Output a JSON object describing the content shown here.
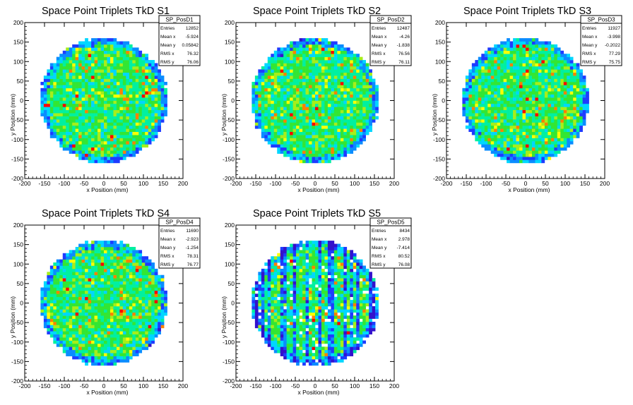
{
  "chart_data": [
    {
      "type": "heatmap",
      "title": "Space Point Triplets TkD S1",
      "xlabel": "x Position (mm)",
      "ylabel": "y Position (mm)",
      "xlim": [
        -200,
        200
      ],
      "ylim": [
        -200,
        200
      ],
      "xticks": [
        -200,
        -150,
        -100,
        -50,
        0,
        50,
        100,
        150,
        200
      ],
      "yticks": [
        -200,
        -150,
        -100,
        -50,
        0,
        50,
        100,
        150,
        200
      ],
      "stats": {
        "name": "SP_PosD1",
        "rows": [
          [
            "Entries",
            "12852"
          ],
          [
            "Mean x",
            "-5.924"
          ],
          [
            "Mean y",
            "0.05842"
          ],
          [
            "RMS x",
            "76.32"
          ],
          [
            "RMS y",
            "76.06"
          ]
        ]
      },
      "bin_width_mm": 8,
      "disk_radius_mm": 160,
      "seed": 11
    },
    {
      "type": "heatmap",
      "title": "Space Point Triplets TkD S2",
      "xlabel": "x Position (mm)",
      "ylabel": "y Position (mm)",
      "xlim": [
        -200,
        200
      ],
      "ylim": [
        -200,
        200
      ],
      "xticks": [
        -200,
        -150,
        -100,
        -50,
        0,
        50,
        100,
        150,
        200
      ],
      "yticks": [
        -200,
        -150,
        -100,
        -50,
        0,
        50,
        100,
        150,
        200
      ],
      "stats": {
        "name": "SP_PosD2",
        "rows": [
          [
            "Entries",
            "12487"
          ],
          [
            "Mean x",
            "-4.26"
          ],
          [
            "Mean y",
            "-1.838"
          ],
          [
            "RMS x",
            "76.56"
          ],
          [
            "RMS y",
            "76.11"
          ]
        ]
      },
      "bin_width_mm": 8,
      "disk_radius_mm": 160,
      "seed": 23
    },
    {
      "type": "heatmap",
      "title": "Space Point Triplets TkD S3",
      "xlabel": "x Position (mm)",
      "ylabel": "y Position (mm)",
      "xlim": [
        -200,
        200
      ],
      "ylim": [
        -200,
        200
      ],
      "xticks": [
        -200,
        -150,
        -100,
        -50,
        0,
        50,
        100,
        150,
        200
      ],
      "yticks": [
        -200,
        -150,
        -100,
        -50,
        0,
        50,
        100,
        150,
        200
      ],
      "stats": {
        "name": "SP_PosD3",
        "rows": [
          [
            "Entries",
            "11927"
          ],
          [
            "Mean x",
            "-3.998"
          ],
          [
            "Mean y",
            "-0.2022"
          ],
          [
            "RMS x",
            "77.29"
          ],
          [
            "RMS y",
            "75.75"
          ]
        ]
      },
      "bin_width_mm": 8,
      "disk_radius_mm": 160,
      "seed": 37
    },
    {
      "type": "heatmap",
      "title": "Space Point Triplets TkD S4",
      "xlabel": "x Position (mm)",
      "ylabel": "y Position (mm)",
      "xlim": [
        -200,
        200
      ],
      "ylim": [
        -200,
        200
      ],
      "xticks": [
        -200,
        -150,
        -100,
        -50,
        0,
        50,
        100,
        150,
        200
      ],
      "yticks": [
        -200,
        -150,
        -100,
        -50,
        0,
        50,
        100,
        150,
        200
      ],
      "stats": {
        "name": "SP_PosD4",
        "rows": [
          [
            "Entries",
            "11690"
          ],
          [
            "Mean x",
            "-2.923"
          ],
          [
            "Mean y",
            "-1.254"
          ],
          [
            "RMS x",
            "78.31"
          ],
          [
            "RMS y",
            "76.77"
          ]
        ]
      },
      "bin_width_mm": 8,
      "disk_radius_mm": 160,
      "seed": 53
    },
    {
      "type": "heatmap",
      "title": "Space Point Triplets TkD S5",
      "xlabel": "x Position (mm)",
      "ylabel": "y Position (mm)",
      "xlim": [
        -200,
        200
      ],
      "ylim": [
        -200,
        200
      ],
      "xticks": [
        -200,
        -150,
        -100,
        -50,
        0,
        50,
        100,
        150,
        200
      ],
      "yticks": [
        -200,
        -150,
        -100,
        -50,
        0,
        50,
        100,
        150,
        200
      ],
      "stats": {
        "name": "SP_PosD5",
        "rows": [
          [
            "Entries",
            "8434"
          ],
          [
            "Mean x",
            "2.978"
          ],
          [
            "Mean y",
            "-7.414"
          ],
          [
            "RMS x",
            "80.52"
          ],
          [
            "RMS y",
            "76.08"
          ]
        ]
      },
      "bin_width_mm": 8,
      "disk_radius_mm": 160,
      "seed": 71,
      "sparse_vertical_bands": true
    }
  ],
  "palette": {
    "colormap": [
      "#3311cc",
      "#1e3bff",
      "#0a8cff",
      "#00d7ff",
      "#00f0a0",
      "#33e633",
      "#a6ee1a",
      "#ffff00",
      "#ff8000",
      "#ff0000"
    ],
    "frame": "#000000",
    "background": "#ffffff"
  }
}
